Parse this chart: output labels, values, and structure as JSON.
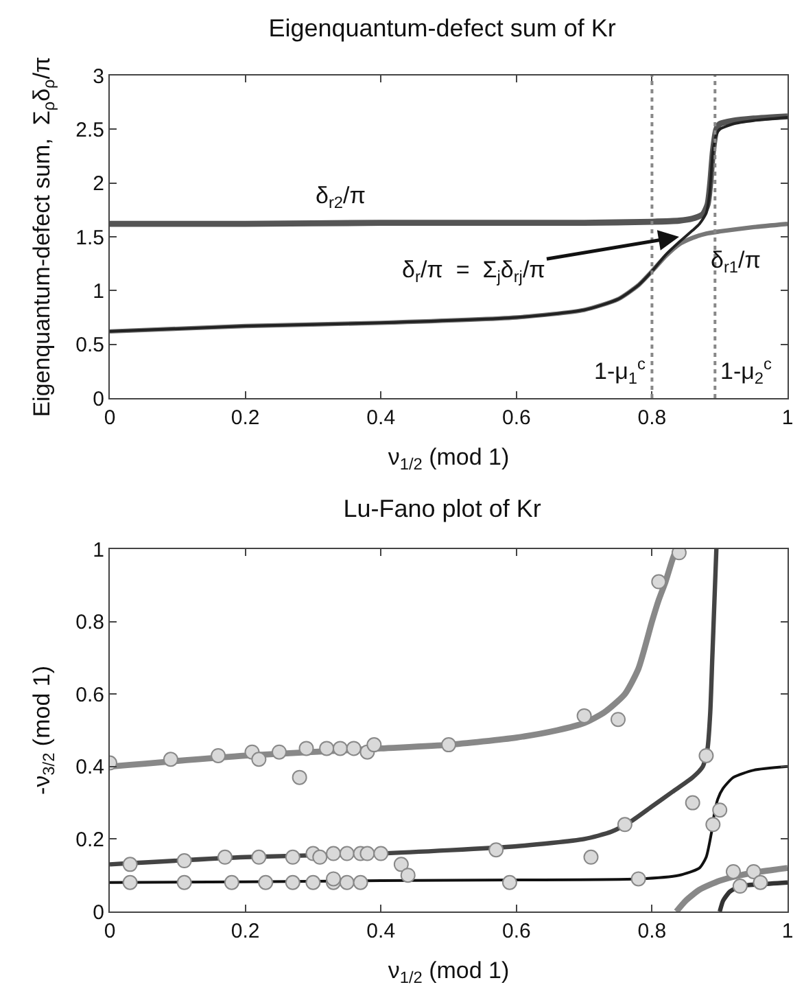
{
  "chart_data": [
    {
      "type": "line",
      "title": "Eigenquantum-defect sum of Kr",
      "xlabel": "ν$_{1/2}$ (mod 1)",
      "ylabel": "Eigenquantum-defect sum,  Σ$_{ρ}$δ$_{ρ}$/π",
      "xlim": [
        0,
        1
      ],
      "ylim": [
        0,
        3
      ],
      "xticks": [
        0,
        0.2,
        0.4,
        0.6,
        0.8,
        1
      ],
      "yticks": [
        0,
        0.5,
        1,
        1.5,
        2,
        2.5,
        3
      ],
      "grid": false,
      "line_style": "solid",
      "ref_lines": [
        {
          "axis": "x",
          "value": 0.8,
          "label": "1-μ$_{1}$$^{c}$",
          "color": "#888888",
          "line_style": "dotted"
        },
        {
          "axis": "x",
          "value": 0.893,
          "label": "1-μ$_{2}$$^{c}$",
          "color": "#888888",
          "line_style": "dotted"
        }
      ],
      "annotations": [
        "δ$_{r2}$/π",
        "δ$_{r1}$/π",
        {
          "text": "δ$_{r}$/π  =  Σ$_{j}$δ$_{rj}$/π",
          "x": 0.84,
          "y": 1.5
        }
      ],
      "series": [
        {
          "color": "#555555",
          "x": [
            0,
            0.2,
            0.4,
            0.6,
            0.7,
            0.8,
            0.84,
            0.86,
            0.875,
            0.882,
            0.886,
            0.89,
            0.895,
            0.9,
            0.92,
            0.95,
            1
          ],
          "values": [
            1.62,
            1.62,
            1.63,
            1.63,
            1.63,
            1.64,
            1.65,
            1.67,
            1.71,
            1.8,
            2.0,
            2.3,
            2.5,
            2.55,
            2.58,
            2.6,
            2.62
          ]
        },
        {
          "color": "#777777",
          "x": [
            0,
            0.2,
            0.4,
            0.6,
            0.7,
            0.75,
            0.78,
            0.8,
            0.82,
            0.84,
            0.86,
            0.88,
            0.9,
            0.95,
            1
          ],
          "values": [
            0.62,
            0.67,
            0.7,
            0.75,
            0.82,
            0.92,
            1.05,
            1.18,
            1.32,
            1.43,
            1.49,
            1.53,
            1.55,
            1.59,
            1.62
          ]
        },
        {
          "color": "#222222",
          "x": [
            0,
            0.2,
            0.4,
            0.6,
            0.7,
            0.75,
            0.78,
            0.8,
            0.82,
            0.84,
            0.86,
            0.87,
            0.88,
            0.885,
            0.89,
            0.895,
            0.9,
            0.92,
            0.95,
            1
          ],
          "values": [
            0.62,
            0.67,
            0.7,
            0.75,
            0.82,
            0.92,
            1.05,
            1.18,
            1.33,
            1.45,
            1.56,
            1.62,
            1.72,
            1.9,
            2.3,
            2.45,
            2.5,
            2.55,
            2.58,
            2.61
          ]
        }
      ]
    },
    {
      "type": "line",
      "title": "Lu-Fano plot of Kr",
      "xlabel": "ν$_{1/2}$ (mod 1)",
      "ylabel": "-ν$_{3/2}$ (mod 1)",
      "xlim": [
        0,
        1
      ],
      "ylim": [
        0,
        1
      ],
      "xticks": [
        0,
        0.2,
        0.4,
        0.6,
        0.8,
        1
      ],
      "yticks": [
        0,
        0.2,
        0.4,
        0.6,
        0.8,
        1
      ],
      "grid": false,
      "line_style": "solid",
      "series": [
        {
          "color": "#888888",
          "x": [
            0,
            0.2,
            0.4,
            0.5,
            0.6,
            0.66,
            0.7,
            0.73,
            0.76,
            0.78,
            0.8,
            0.81,
            0.82,
            0.83,
            0.836
          ],
          "values": [
            0.4,
            0.43,
            0.45,
            0.46,
            0.48,
            0.5,
            0.52,
            0.55,
            0.6,
            0.67,
            0.8,
            0.86,
            0.91,
            0.97,
            1
          ]
        },
        {
          "color": "#444444",
          "x": [
            0,
            0.2,
            0.4,
            0.6,
            0.7,
            0.74,
            0.77,
            0.8,
            0.83,
            0.86,
            0.875,
            0.882,
            0.886,
            0.889,
            0.892,
            0.895
          ],
          "values": [
            0.13,
            0.15,
            0.16,
            0.18,
            0.2,
            0.22,
            0.25,
            0.29,
            0.33,
            0.37,
            0.4,
            0.45,
            0.55,
            0.7,
            0.85,
            1
          ]
        },
        {
          "color": "#111111",
          "x": [
            0,
            0.2,
            0.4,
            0.6,
            0.78,
            0.84,
            0.87,
            0.88,
            0.888,
            0.892,
            0.897,
            0.905,
            0.92,
            0.95,
            1
          ],
          "values": [
            0.08,
            0.082,
            0.085,
            0.087,
            0.09,
            0.1,
            0.12,
            0.15,
            0.22,
            0.27,
            0.31,
            0.34,
            0.37,
            0.39,
            0.4
          ]
        },
        {
          "color": "#888888",
          "x": [
            0.836,
            0.85,
            0.87,
            0.9,
            0.93,
            0.96,
            1
          ],
          "values": [
            0,
            0.03,
            0.06,
            0.085,
            0.1,
            0.11,
            0.12
          ]
        },
        {
          "color": "#333333",
          "x": [
            0.9,
            0.905,
            0.915,
            0.93,
            0.96,
            1
          ],
          "values": [
            0,
            0.03,
            0.055,
            0.07,
            0.075,
            0.08
          ]
        },
        {
          "type": "scatter",
          "marker": "circle",
          "color": "#d9d9d9",
          "x": [
            0,
            0.09,
            0.16,
            0.21,
            0.22,
            0.25,
            0.29,
            0.32,
            0.34,
            0.36,
            0.38,
            0.39,
            0.5,
            0.28,
            0.7,
            0.75,
            0.81,
            0.84,
            0.03,
            0.11,
            0.17,
            0.22,
            0.27,
            0.3,
            0.31,
            0.33,
            0.35,
            0.37,
            0.38,
            0.4,
            0.43,
            0.44,
            0.57,
            0.71,
            0.76,
            0.88,
            0.86,
            0.9,
            0.89,
            0.03,
            0.11,
            0.18,
            0.23,
            0.27,
            0.3,
            0.33,
            0.33,
            0.35,
            0.37,
            0.59,
            0.78,
            0.92,
            0.95,
            0.93,
            0.96
          ],
          "values": [
            0.41,
            0.42,
            0.43,
            0.44,
            0.42,
            0.44,
            0.45,
            0.45,
            0.45,
            0.45,
            0.44,
            0.46,
            0.46,
            0.37,
            0.54,
            0.53,
            0.91,
            0.99,
            0.13,
            0.14,
            0.15,
            0.15,
            0.15,
            0.16,
            0.15,
            0.16,
            0.16,
            0.16,
            0.16,
            0.16,
            0.13,
            0.1,
            0.17,
            0.15,
            0.24,
            0.43,
            0.3,
            0.28,
            0.24,
            0.08,
            0.08,
            0.08,
            0.08,
            0.08,
            0.08,
            0.08,
            0.09,
            0.08,
            0.08,
            0.08,
            0.09,
            0.11,
            0.11,
            0.07,
            0.08
          ]
        }
      ]
    }
  ]
}
